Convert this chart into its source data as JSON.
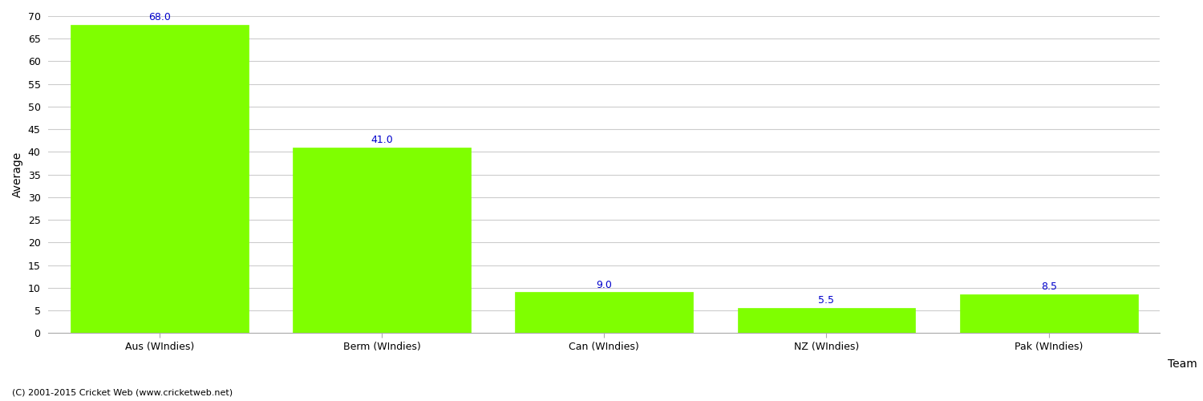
{
  "categories": [
    "Aus (WIndies)",
    "Berm (WIndies)",
    "Can (WIndies)",
    "NZ (WIndies)",
    "Pak (WIndies)"
  ],
  "values": [
    68.0,
    41.0,
    9.0,
    5.5,
    8.5
  ],
  "bar_color": "#7fff00",
  "bar_edge_color": "#7fff00",
  "label_color": "#0000cc",
  "ylabel": "Average",
  "xlabel": "Team",
  "ylim": [
    0,
    70
  ],
  "yticks": [
    0,
    5,
    10,
    15,
    20,
    25,
    30,
    35,
    40,
    45,
    50,
    55,
    60,
    65,
    70
  ],
  "annotation_fontsize": 9,
  "axis_label_fontsize": 10,
  "tick_fontsize": 9,
  "footer_text": "(C) 2001-2015 Cricket Web (www.cricketweb.net)",
  "footer_fontsize": 8,
  "background_color": "#ffffff",
  "grid_color": "#cccccc"
}
